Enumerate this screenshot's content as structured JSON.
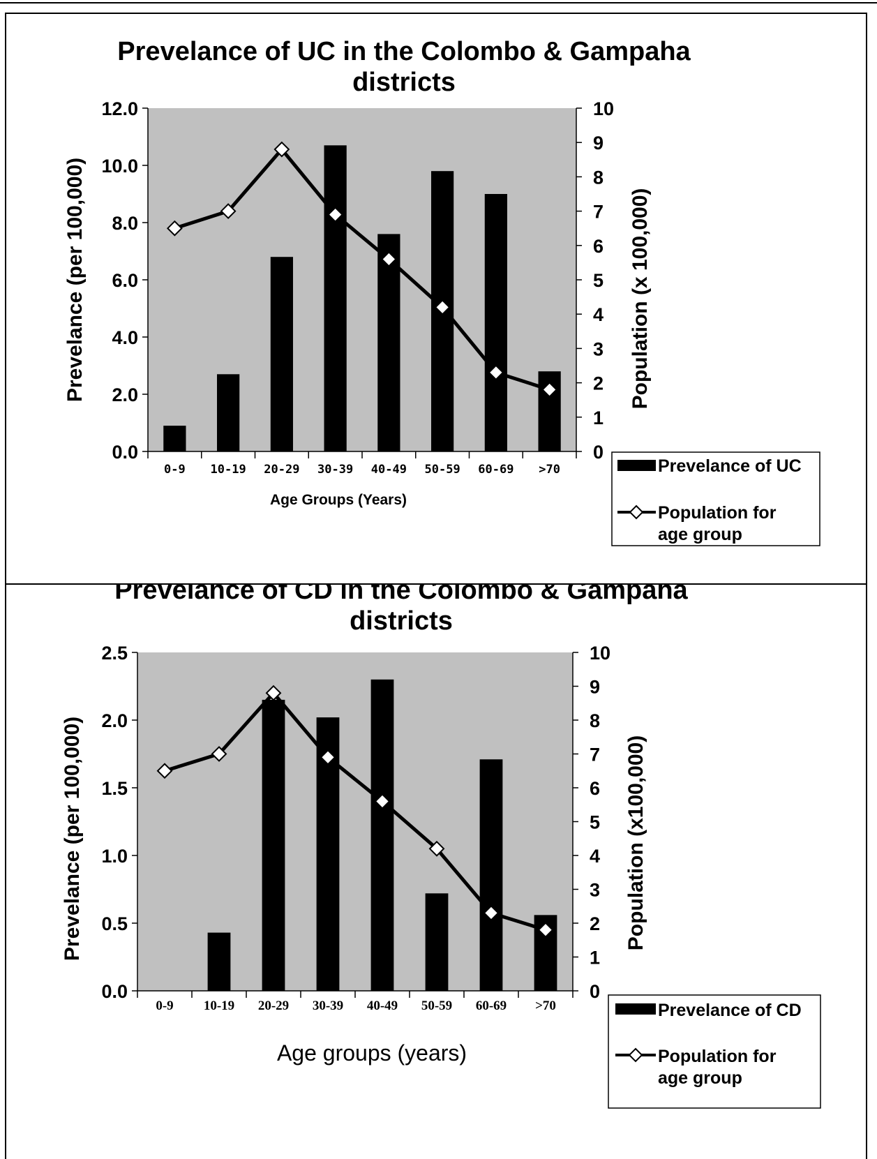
{
  "chart_data": [
    {
      "type": "bar+line",
      "title_line1": "Prevelance of UC in the Colombo & Gampaha",
      "title_line2": "districts",
      "xlabel": "Age Groups (Years)",
      "ylabel_left": "Prevelance (per 100,000)",
      "ylabel_right": "Population (x 100,000)",
      "ylim_left": [
        0,
        12
      ],
      "ylim_right": [
        0,
        10
      ],
      "yticks_left": [
        "0.0",
        "2.0",
        "4.0",
        "6.0",
        "8.0",
        "10.0",
        "12.0"
      ],
      "yticks_right": [
        "0",
        "1",
        "2",
        "3",
        "4",
        "5",
        "6",
        "7",
        "8",
        "9",
        "10"
      ],
      "categories": [
        "0-9",
        "10-19",
        "20-29",
        "30-39",
        "40-49",
        "50-59",
        "60-69",
        ">70"
      ],
      "series": [
        {
          "name": "Prevelance of UC",
          "kind": "bar",
          "axis": "left",
          "values": [
            0.9,
            2.7,
            6.8,
            10.7,
            7.6,
            9.8,
            9.0,
            2.8
          ]
        },
        {
          "name": "Population for age group",
          "kind": "line",
          "axis": "right",
          "values": [
            6.5,
            7.0,
            8.8,
            6.9,
            5.6,
            4.2,
            2.3,
            1.8
          ]
        }
      ],
      "legend": [
        "Prevelance of UC",
        "Population for age group"
      ],
      "legend_position": "bottom-right",
      "background_color": "#c0c0c0",
      "bar_color": "#000000",
      "line_color": "#000000",
      "marker_fill": "#ffffff"
    },
    {
      "type": "bar+line",
      "title_line1": "Prevelance of CD in the Colombo & Gampaha",
      "title_line2": "districts",
      "xlabel": "Age groups (years)",
      "ylabel_left": "Prevelance (per 100,000)",
      "ylabel_right": "Population (x100,000)",
      "ylim_left": [
        0,
        2.5
      ],
      "ylim_right": [
        0,
        10
      ],
      "yticks_left": [
        "0.0",
        "0.5",
        "1.0",
        "1.5",
        "2.0",
        "2.5"
      ],
      "yticks_right": [
        "0",
        "1",
        "2",
        "3",
        "4",
        "5",
        "6",
        "7",
        "8",
        "9",
        "10"
      ],
      "categories": [
        "0-9",
        "10-19",
        "20-29",
        "30-39",
        "40-49",
        "50-59",
        "60-69",
        ">70"
      ],
      "series": [
        {
          "name": "Prevelance of CD",
          "kind": "bar",
          "axis": "left",
          "values": [
            0,
            0.43,
            2.15,
            2.02,
            2.3,
            0.72,
            1.71,
            0.56
          ]
        },
        {
          "name": "Population for age group",
          "kind": "line",
          "axis": "right",
          "values": [
            6.5,
            7.0,
            8.8,
            6.9,
            5.6,
            4.2,
            2.3,
            1.8
          ]
        }
      ],
      "legend": [
        "Prevelance of CD",
        "Population for age group"
      ],
      "legend_position": "bottom-right",
      "background_color": "#c0c0c0",
      "bar_color": "#000000",
      "line_color": "#000000",
      "marker_fill": "#ffffff"
    }
  ],
  "legend_labels": {
    "uc_bar": "Prevelance of UC",
    "cd_bar": "Prevelance of CD",
    "line_line1": "Population for",
    "line_line2": "age group"
  }
}
